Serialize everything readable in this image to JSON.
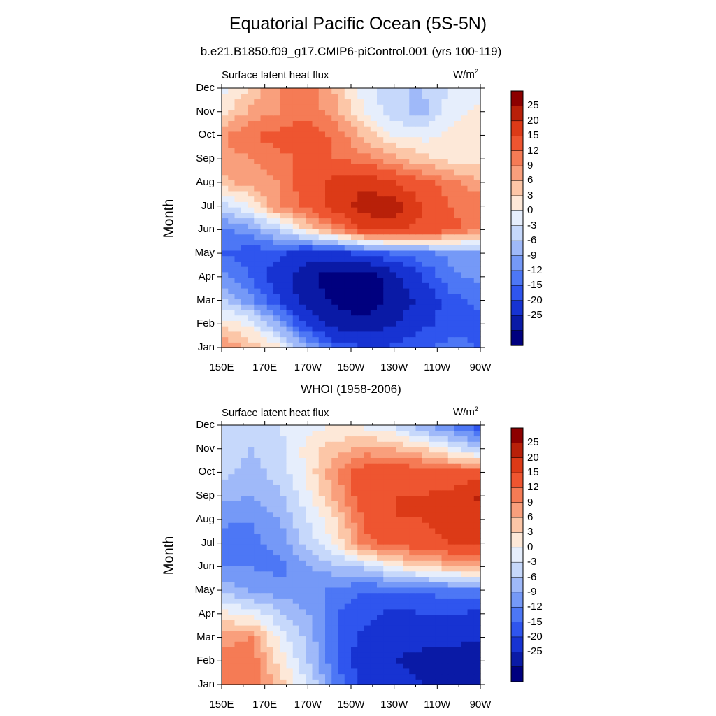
{
  "title": "Equatorial Pacific Ocean (5S-5N)",
  "colors": [
    "#00007f",
    "#0a1aa6",
    "#1733d2",
    "#2f55ee",
    "#4d77f5",
    "#7599f7",
    "#9fb9f9",
    "#c6d8fb",
    "#e6eefc",
    "#fde8d8",
    "#fcc6a7",
    "#f99f7c",
    "#f57b55",
    "#ee5530",
    "#dc3a17",
    "#b82009",
    "#8c0000"
  ],
  "colorbar": {
    "levels": [
      "25",
      "20",
      "15",
      "12",
      "9",
      "6",
      "3",
      "0",
      "-3",
      "-6",
      "-9",
      "-12",
      "-15",
      "-20",
      "-25"
    ],
    "boundaries": [
      -30,
      -25,
      -20,
      -15,
      -12,
      -9,
      -6,
      -3,
      0,
      3,
      6,
      9,
      12,
      15,
      20,
      25,
      30
    ]
  },
  "chart_data": [
    {
      "type": "heatmap",
      "panel_title": "b.e21.B1850.f09_g17.CMIP6-piControl.001 (yrs 100-119)",
      "variable": "Surface latent heat flux",
      "units": "W/m",
      "units_exp": "2",
      "ylabel": "Month",
      "y_ticks": [
        "Jan",
        "Feb",
        "Mar",
        "Apr",
        "May",
        "Jun",
        "Jul",
        "Aug",
        "Sep",
        "Oct",
        "Nov",
        "Dec"
      ],
      "x_ticks": [
        "150E",
        "170E",
        "170W",
        "150W",
        "130W",
        "110W",
        "90W"
      ],
      "x_lon": [
        150,
        170,
        190,
        210,
        230,
        250,
        270
      ],
      "value_range": [
        -30,
        30
      ],
      "values_by_month": [
        [
          12,
          8,
          4,
          -6,
          -12,
          -15,
          -14,
          -12,
          -11,
          -12
        ],
        [
          5,
          2,
          -6,
          -16,
          -22,
          -24,
          -20,
          -16,
          -13,
          -13
        ],
        [
          -2,
          -8,
          -15,
          -22,
          -26,
          -28,
          -24,
          -18,
          -13,
          -11
        ],
        [
          -8,
          -12,
          -18,
          -24,
          -28,
          -28,
          -22,
          -15,
          -10,
          -8
        ],
        [
          -12,
          -14,
          -14,
          -18,
          -17,
          -14,
          -12,
          -10,
          -8,
          -6
        ],
        [
          -10,
          -7,
          -2,
          6,
          12,
          20,
          21,
          18,
          16,
          12
        ],
        [
          -2,
          3,
          12,
          16,
          22,
          28,
          28,
          20,
          15,
          14
        ],
        [
          8,
          10,
          12,
          18,
          22,
          24,
          20,
          16,
          13,
          10
        ],
        [
          10,
          12,
          14,
          16,
          15,
          13,
          10,
          7,
          5,
          4
        ],
        [
          12,
          15,
          16,
          18,
          14,
          8,
          3,
          2,
          4,
          4
        ],
        [
          4,
          10,
          12,
          14,
          10,
          3,
          -2,
          -4,
          2,
          4
        ],
        [
          2,
          6,
          12,
          14,
          8,
          1,
          -3,
          -3,
          0,
          1
        ]
      ]
    },
    {
      "type": "heatmap",
      "panel_title": "WHOI (1958-2006)",
      "variable": "Surface latent heat flux",
      "units": "W/m",
      "units_exp": "2",
      "ylabel": "Month",
      "y_ticks": [
        "Jan",
        "Feb",
        "Mar",
        "Apr",
        "May",
        "Jun",
        "Jul",
        "Aug",
        "Sep",
        "Oct",
        "Nov",
        "Dec"
      ],
      "x_ticks": [
        "150E",
        "170E",
        "170W",
        "150W",
        "130W",
        "110W",
        "90W"
      ],
      "x_lon": [
        150,
        170,
        190,
        210,
        230,
        250,
        270
      ],
      "value_range": [
        -30,
        30
      ],
      "values_by_month": [
        [
          14,
          14,
          8,
          0,
          -10,
          -16,
          -18,
          -20,
          -22,
          -25
        ],
        [
          14,
          15,
          5,
          -3,
          -12,
          -18,
          -20,
          -22,
          -24,
          -24
        ],
        [
          10,
          12,
          2,
          -4,
          -12,
          -16,
          -18,
          -18,
          -18,
          -20
        ],
        [
          4,
          2,
          -2,
          -6,
          -12,
          -14,
          -16,
          -15,
          -15,
          -16
        ],
        [
          -4,
          -6,
          -8,
          -8,
          -10,
          -12,
          -12,
          -12,
          -10,
          -10
        ],
        [
          -9,
          -9,
          -10,
          -6,
          -4,
          -2,
          3,
          6,
          8,
          10
        ],
        [
          -12,
          -10,
          -8,
          -2,
          4,
          14,
          16,
          18,
          20,
          22
        ],
        [
          -8,
          -9,
          -6,
          0,
          6,
          16,
          20,
          20,
          22,
          24
        ],
        [
          -5,
          -6,
          -4,
          2,
          10,
          18,
          20,
          20,
          22,
          26
        ],
        [
          -2,
          -4,
          -2,
          4,
          12,
          18,
          18,
          18,
          16,
          18
        ],
        [
          -2,
          -3,
          -1,
          4,
          8,
          10,
          9,
          6,
          2,
          -4
        ],
        [
          -2,
          -2,
          0,
          2,
          3,
          2,
          0,
          -6,
          -10,
          -14
        ]
      ]
    }
  ]
}
